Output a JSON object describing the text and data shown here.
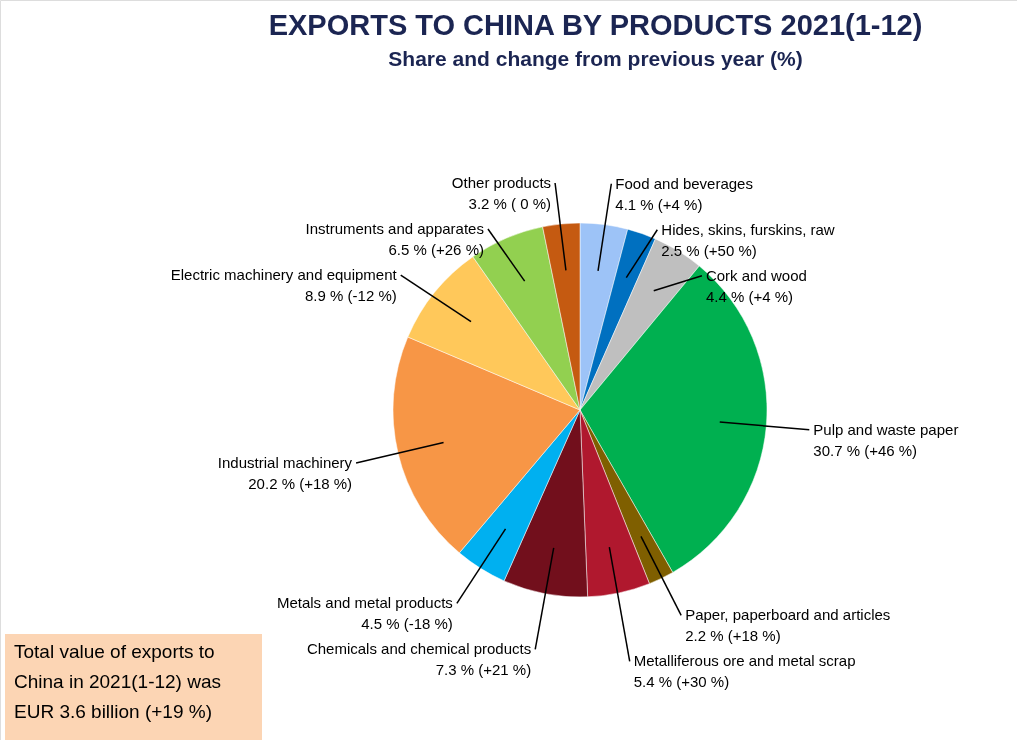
{
  "chart_data": {
    "type": "pie",
    "title": "EXPORTS TO CHINA BY PRODUCTS 2021(1-12)",
    "subtitle": "Share and change from previous year (%)",
    "categories": [
      "Food and beverages",
      "Hides, skins, furskins, raw",
      "Cork and wood",
      "Pulp and waste paper",
      "Paper, paperboard and articles",
      "Metalliferous ore and metal scrap",
      "Chemicals and chemical products",
      "Metals and metal products",
      "Industrial machinery",
      "Electric machinery and equipment",
      "Instruments and apparates",
      "Other products"
    ],
    "values": [
      4.1,
      2.5,
      4.4,
      30.7,
      2.2,
      5.4,
      7.3,
      4.5,
      20.2,
      8.9,
      6.5,
      3.2
    ],
    "colors": [
      "#9dc3f7",
      "#0070c0",
      "#bfbfbf",
      "#00b050",
      "#7f5f00",
      "#b0182e",
      "#720f1c",
      "#00b0f0",
      "#f79646",
      "#ffc85a",
      "#92d050",
      "#c55a11"
    ],
    "value_labels": [
      "4.1 % (+4 %)",
      "2.5 % (+50 %)",
      "4.4 % (+4 %)",
      "30.7 % (+46 %)",
      "2.2 % (+18 %)",
      "5.4 % (+30 %)",
      "7.3 % (+21 %)",
      "4.5 % (-18 %)",
      "20.2 % (+18 %)",
      "8.9 % (-12 %)",
      "6.5 % (+26 %)",
      "3.2 % ( 0 %)"
    ],
    "annotations": [
      "Total value of exports to China in 2021(1-12) was EUR 3.6 billion (+19 %)"
    ]
  }
}
